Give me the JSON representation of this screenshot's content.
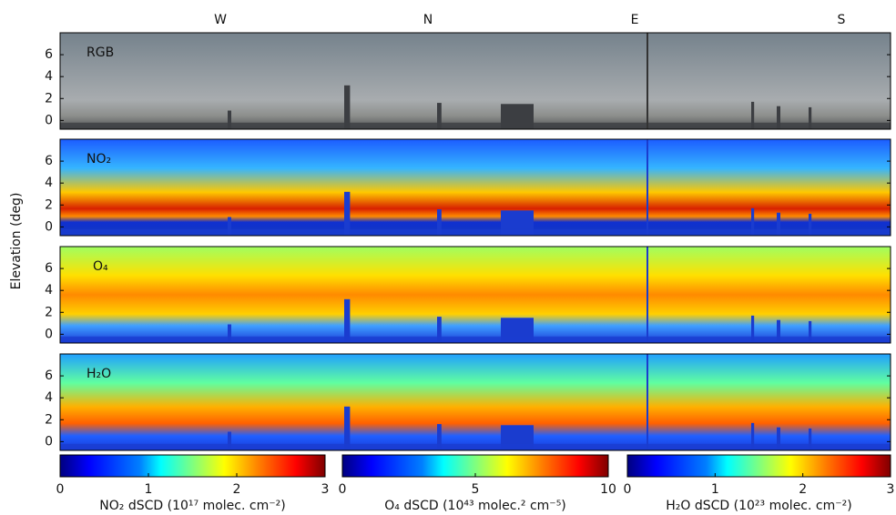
{
  "chart_data": {
    "type": "heatmap",
    "y_label": "Elevation (deg)",
    "directions": [
      "W",
      "N",
      "E",
      "S"
    ],
    "ylim": [
      -0.8,
      8
    ],
    "yticks": [
      0,
      2,
      4,
      6
    ],
    "panels": [
      {
        "label": "RGB"
      },
      {
        "label": "NO₂"
      },
      {
        "label": "O₄"
      },
      {
        "label": "H₂O"
      }
    ],
    "colorbars": [
      {
        "label": "NO₂ dSCD (10¹⁷ molec. cm⁻²)",
        "lim": [
          0,
          3
        ],
        "ticks": [
          0,
          1,
          2,
          3
        ]
      },
      {
        "label": "O₄ dSCD (10⁴³ molec.² cm⁻⁵)",
        "lim": [
          0,
          10
        ],
        "ticks": [
          0,
          5,
          10
        ]
      },
      {
        "label": "H₂O dSCD (10²³ molec. cm⁻²)",
        "lim": [
          0,
          3
        ],
        "ticks": [
          0,
          1,
          2,
          3
        ]
      }
    ]
  }
}
